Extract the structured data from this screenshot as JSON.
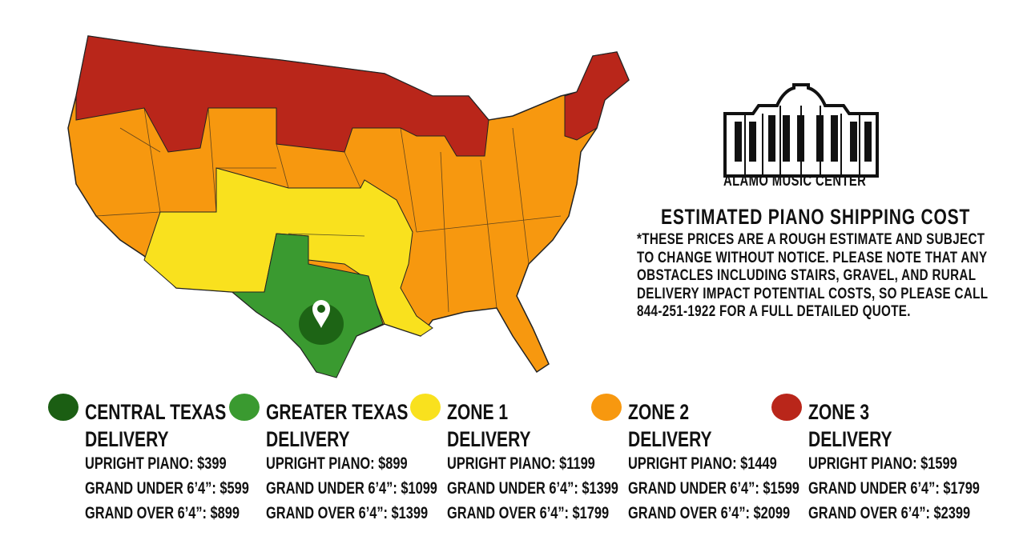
{
  "brand": {
    "name": "ALAMO MUSIC CENTER"
  },
  "heading": "ESTIMATED PIANO SHIPPING COST",
  "disclaimer_lines": [
    "*THESE PRICES ARE A ROUGH ESTIMATE AND SUBJECT",
    "TO CHANGE WITHOUT NOTICE. PLEASE NOTE THAT ANY",
    "OBSTACLES INCLUDING STAIRS, GRAVEL, AND RURAL",
    "DELIVERY IMPACT POTENTIAL COSTS, SO PLEASE CALL",
    "844-251-1922 FOR A FULL DETAILED QUOTE."
  ],
  "map": {
    "pin_icon": "location-pin-icon"
  },
  "zones": [
    {
      "name1": "CENTRAL TEXAS",
      "name2": "DELIVERY",
      "color": "#1b5e13",
      "upright": "UPRIGHT PIANO: $399",
      "grand_under": "GRAND UNDER 6’4”: $599",
      "grand_over": "GRAND OVER 6’4”: $899"
    },
    {
      "name1": "GREATER TEXAS",
      "name2": "DELIVERY",
      "color": "#3a9a30",
      "upright": "UPRIGHT PIANO: $899",
      "grand_under": "GRAND UNDER 6’4”: $1099",
      "grand_over": "GRAND OVER 6’4”: $1399"
    },
    {
      "name1": "ZONE 1",
      "name2": "DELIVERY",
      "color": "#f9e11e",
      "upright": "UPRIGHT PIANO: $1199",
      "grand_under": "GRAND UNDER 6’4”: $1399",
      "grand_over": "GRAND OVER 6’4”: $1799"
    },
    {
      "name1": "ZONE 2",
      "name2": "DELIVERY",
      "color": "#f7980f",
      "upright": "UPRIGHT PIANO: $1449",
      "grand_under": "GRAND UNDER 6’4”: $1599",
      "grand_over": "GRAND OVER 6’4”: $2099"
    },
    {
      "name1": "ZONE 3",
      "name2": "DELIVERY",
      "color": "#b9261a",
      "upright": "UPRIGHT PIANO: $1599",
      "grand_under": "GRAND UNDER 6’4”: $1799",
      "grand_over": "GRAND OVER 6’4”: $2399"
    }
  ]
}
